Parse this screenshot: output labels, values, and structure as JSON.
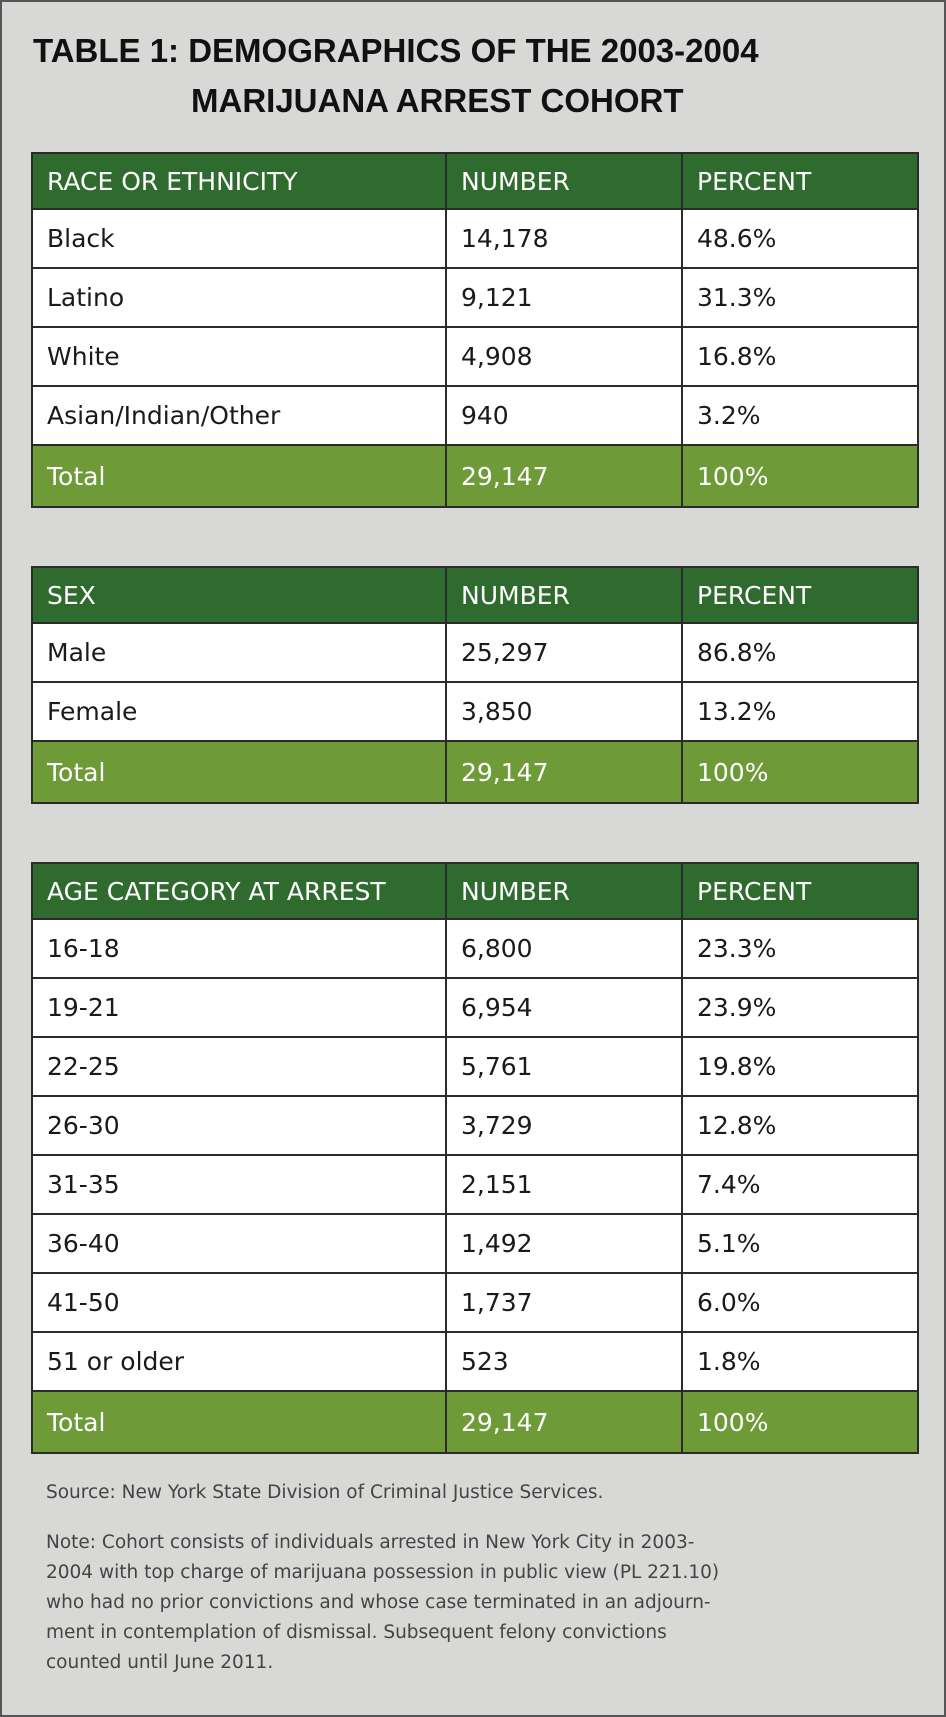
{
  "title": [
    "TABLE 1: DEMOGRAPHICS OF THE 2003-2004",
    "MARIJUANA ARREST COHORT"
  ],
  "tables": [
    {
      "header": [
        "RACE OR ETHNICITY",
        "NUMBER",
        "PERCENT"
      ],
      "rows": [
        [
          "Black",
          "14,178",
          "48.6%"
        ],
        [
          "Latino",
          "9,121",
          "31.3%"
        ],
        [
          "White",
          "4,908",
          "16.8%"
        ],
        [
          "Asian/Indian/Other",
          "940",
          "3.2%"
        ]
      ],
      "total": [
        "Total",
        "29,147",
        "100%"
      ]
    },
    {
      "header": [
        "SEX",
        "NUMBER",
        "PERCENT"
      ],
      "rows": [
        [
          "Male",
          "25,297",
          "86.8%"
        ],
        [
          "Female",
          "3,850",
          "13.2%"
        ]
      ],
      "total": [
        "Total",
        "29,147",
        "100%"
      ]
    },
    {
      "header": [
        "AGE CATEGORY AT ARREST",
        "NUMBER",
        "PERCENT"
      ],
      "rows": [
        [
          "16-18",
          "6,800",
          "23.3%"
        ],
        [
          "19-21",
          "6,954",
          "23.9%"
        ],
        [
          "22-25",
          "5,761",
          "19.8%"
        ],
        [
          "26-30",
          "3,729",
          "12.8%"
        ],
        [
          "31-35",
          "2,151",
          "7.4%"
        ],
        [
          "36-40",
          "1,492",
          "5.1%"
        ],
        [
          "41-50",
          "1,737",
          "6.0%"
        ],
        [
          "51 or older",
          "523",
          "1.8%"
        ]
      ],
      "total": [
        "Total",
        "29,147",
        "100%"
      ]
    }
  ],
  "source": "Source: New York State Division of Criminal Justice Services.",
  "note": [
    "Note: Cohort consists of individuals arrested in New York City in 2003-",
    "2004 with top charge of marijuana possession in public view (PL 221.10)",
    "who had no prior convictions and whose case terminated in an adjourn-",
    "ment in contemplation of dismissal. Subsequent felony convictions",
    "counted until June 2011."
  ]
}
